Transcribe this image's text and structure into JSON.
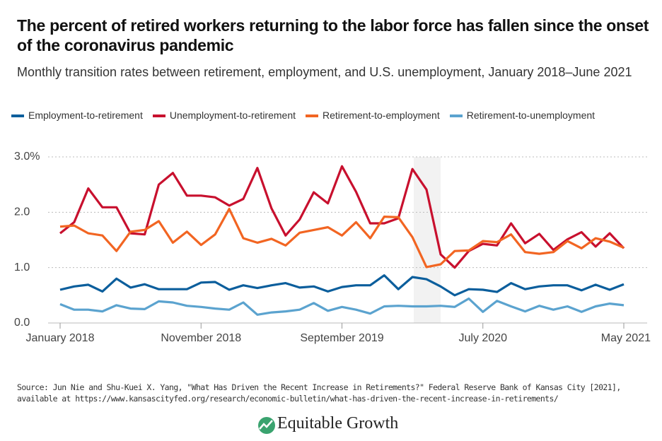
{
  "chart_data": {
    "type": "line",
    "title": "The percent of retired workers returning to the labor force has fallen since the onset of the coronavirus pandemic",
    "subtitle": "Monthly transition rates between retirement, employment, and U.S. unemployment, January 2018–June 2021",
    "categories": [
      "January 2018",
      null,
      null,
      null,
      null,
      null,
      null,
      null,
      null,
      null,
      "November 2018",
      null,
      null,
      null,
      null,
      null,
      null,
      null,
      null,
      null,
      "September 2019",
      null,
      null,
      null,
      null,
      null,
      null,
      null,
      null,
      null,
      "July 2020",
      null,
      null,
      null,
      null,
      null,
      null,
      null,
      null,
      null,
      "May 2021"
    ],
    "series": [
      {
        "name": "Employment-to-retirement",
        "color": "#0b5e9c",
        "values": [
          0.6,
          0.66,
          0.69,
          0.57,
          0.8,
          0.64,
          0.7,
          0.61,
          0.61,
          0.61,
          0.73,
          0.74,
          0.6,
          0.68,
          0.63,
          0.68,
          0.72,
          0.64,
          0.66,
          0.57,
          0.65,
          0.68,
          0.68,
          0.86,
          0.61,
          0.83,
          0.79,
          0.66,
          0.5,
          0.61,
          0.6,
          0.56,
          0.72,
          0.61,
          0.66,
          0.68,
          0.68,
          0.59,
          0.69,
          0.6,
          0.7
        ]
      },
      {
        "name": "Unemployment-to-retirement",
        "color": "#c8102e",
        "values": [
          1.62,
          1.82,
          2.43,
          2.09,
          2.09,
          1.62,
          1.6,
          2.5,
          2.71,
          2.3,
          2.3,
          2.27,
          2.12,
          2.24,
          2.8,
          2.07,
          1.58,
          1.87,
          2.36,
          2.16,
          2.83,
          2.37,
          1.8,
          1.8,
          1.89,
          2.78,
          2.41,
          1.24,
          1.0,
          1.3,
          1.43,
          1.4,
          1.8,
          1.44,
          1.61,
          1.32,
          1.51,
          1.64,
          1.38,
          1.62,
          1.35
        ]
      },
      {
        "name": "Retirement-to-employment",
        "color": "#f26522",
        "values": [
          1.74,
          1.76,
          1.62,
          1.58,
          1.3,
          1.65,
          1.68,
          1.84,
          1.45,
          1.65,
          1.41,
          1.6,
          2.06,
          1.53,
          1.45,
          1.52,
          1.4,
          1.63,
          1.68,
          1.73,
          1.58,
          1.82,
          1.53,
          1.92,
          1.91,
          1.55,
          1.01,
          1.06,
          1.3,
          1.31,
          1.48,
          1.46,
          1.6,
          1.28,
          1.25,
          1.28,
          1.48,
          1.35,
          1.53,
          1.47,
          1.36
        ]
      },
      {
        "name": "Retirement-to-unemployment",
        "color": "#5ba3cf",
        "values": [
          0.34,
          0.24,
          0.24,
          0.21,
          0.32,
          0.26,
          0.25,
          0.39,
          0.37,
          0.31,
          0.29,
          0.26,
          0.24,
          0.37,
          0.15,
          0.19,
          0.21,
          0.24,
          0.36,
          0.22,
          0.29,
          0.24,
          0.17,
          0.3,
          0.31,
          0.3,
          0.3,
          0.31,
          0.29,
          0.44,
          0.2,
          0.4,
          0.3,
          0.21,
          0.31,
          0.24,
          0.3,
          0.2,
          0.3,
          0.35,
          0.32
        ]
      }
    ],
    "ylim": [
      0,
      3
    ],
    "yticks": [
      {
        "value": 0,
        "label": "0.0"
      },
      {
        "value": 1,
        "label": "1.0"
      },
      {
        "value": 2,
        "label": "2.0"
      },
      {
        "value": 3,
        "label": "3.0%"
      }
    ],
    "grid": true,
    "source": "Source: Jun Nie and Shu-Kuei X. Yang, \"What Has Driven the Recent Increase in Retirements?\" Federal Reserve Bank of Kansas City [2021], available at https://www.kansascityfed.org/research/economic-bulletin/what-has-driven-the-recent-increase-in-retirements/",
    "brand": "Equitable Growth"
  }
}
